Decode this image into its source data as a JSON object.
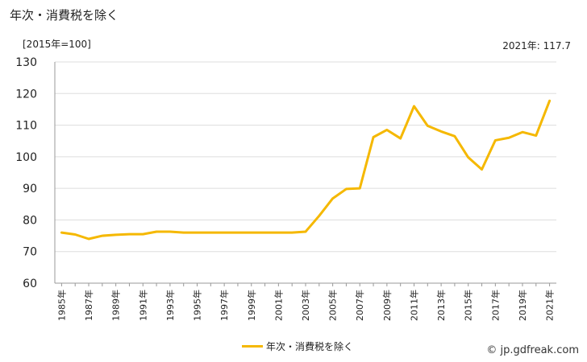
{
  "title": "年次・消費税を除く",
  "unit_label": "[2015年=100]",
  "latest_label": "2021年: 117.7",
  "legend_label": "年次・消費税を除く",
  "credit": "© jp.gdfreak.com",
  "colors": {
    "series": "#f5b800",
    "grid": "#dddddd",
    "axis": "#999999"
  },
  "chart_data": {
    "type": "line",
    "title": "年次・消費税を除く",
    "ylabel": "[2015年=100]",
    "ylim": [
      60,
      130
    ],
    "yticks": [
      60,
      70,
      80,
      90,
      100,
      110,
      120,
      130
    ],
    "grid": true,
    "legend": "bottom",
    "x": [
      1985,
      1986,
      1987,
      1988,
      1989,
      1990,
      1991,
      1992,
      1993,
      1994,
      1995,
      1996,
      1997,
      1998,
      1999,
      2000,
      2001,
      2002,
      2003,
      2004,
      2005,
      2006,
      2007,
      2008,
      2009,
      2010,
      2011,
      2012,
      2013,
      2014,
      2015,
      2016,
      2017,
      2018,
      2019,
      2020,
      2021
    ],
    "xtick_labels": [
      "1985年",
      "1987年",
      "1989年",
      "1991年",
      "1993年",
      "1995年",
      "1997年",
      "1999年",
      "2001年",
      "2003年",
      "2005年",
      "2007年",
      "2009年",
      "2011年",
      "2013年",
      "2015年",
      "2017年",
      "2019年",
      "2021年"
    ],
    "series": [
      {
        "name": "年次・消費税を除く",
        "values": [
          76.0,
          75.4,
          74.0,
          75.0,
          75.3,
          75.5,
          75.5,
          76.3,
          76.3,
          76.0,
          76.0,
          76.0,
          76.0,
          76.0,
          76.0,
          76.0,
          76.0,
          76.0,
          76.3,
          81.3,
          86.8,
          89.8,
          90.0,
          106.2,
          108.5,
          105.8,
          116.0,
          109.8,
          108.0,
          106.5,
          99.8,
          96.0,
          105.2,
          106.0,
          107.8,
          106.7,
          117.7
        ]
      }
    ]
  }
}
